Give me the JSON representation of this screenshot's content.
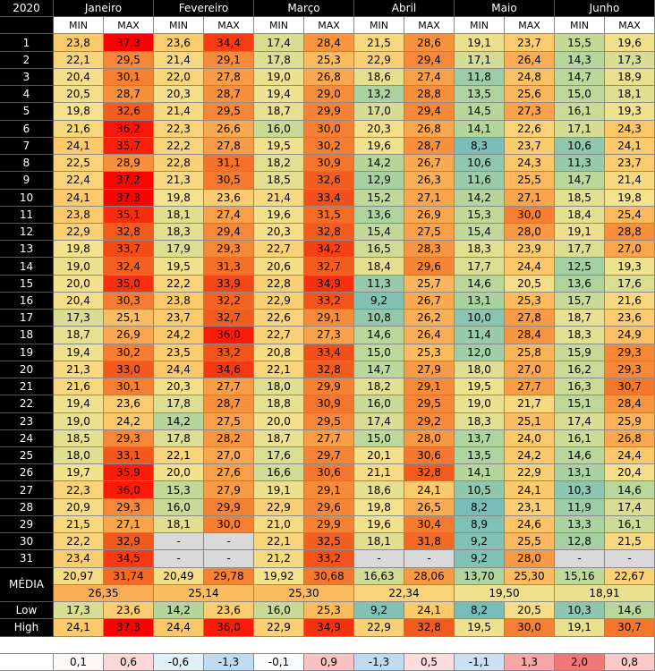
{
  "header": {
    "year": "2020",
    "months": [
      "Janeiro",
      "Fevereiro",
      "Março",
      "Abril",
      "Maio",
      "Junho"
    ],
    "subheaders": [
      "MIN",
      "MAX"
    ]
  },
  "rows": [
    {
      "day": "1",
      "cells": [
        "23,8",
        "37,3",
        "23,6",
        "34,4",
        "17,4",
        "28,4",
        "21,5",
        "28,6",
        "19,1",
        "23,7",
        "15,5",
        "19,6"
      ]
    },
    {
      "day": "2",
      "cells": [
        "22,1",
        "29,5",
        "21,4",
        "29,1",
        "17,8",
        "25,3",
        "22,9",
        "29,4",
        "17,1",
        "26,4",
        "14,3",
        "17,3"
      ]
    },
    {
      "day": "3",
      "cells": [
        "20,4",
        "30,1",
        "22,0",
        "27,8",
        "19,0",
        "26,8",
        "18,6",
        "27,4",
        "11,8",
        "24,8",
        "14,7",
        "18,9"
      ]
    },
    {
      "day": "4",
      "cells": [
        "20,5",
        "28,7",
        "20,3",
        "28,7",
        "19,4",
        "29,0",
        "13,2",
        "28,8",
        "13,5",
        "25,6",
        "15,0",
        "18,1"
      ]
    },
    {
      "day": "5",
      "cells": [
        "19,8",
        "32,6",
        "21,4",
        "29,5",
        "18,7",
        "29,9",
        "17,0",
        "29,4",
        "14,5",
        "27,3",
        "16,1",
        "19,3"
      ]
    },
    {
      "day": "6",
      "cells": [
        "21,6",
        "36,2",
        "22,3",
        "26,6",
        "16,0",
        "30,0",
        "20,3",
        "26,8",
        "14,1",
        "22,6",
        "17,1",
        "24,3"
      ]
    },
    {
      "day": "7",
      "cells": [
        "24,1",
        "35,7",
        "22,2",
        "27,8",
        "19,5",
        "30,2",
        "19,6",
        "28,7",
        "8,3",
        "23,7",
        "10,6",
        "24,1"
      ]
    },
    {
      "day": "8",
      "cells": [
        "22,5",
        "28,9",
        "22,8",
        "31,1",
        "18,2",
        "30,9",
        "14,2",
        "26,7",
        "10,6",
        "24,3",
        "11,3",
        "23,7"
      ]
    },
    {
      "day": "9",
      "cells": [
        "22,4",
        "37,2",
        "21,3",
        "30,5",
        "18,5",
        "32,6",
        "12,9",
        "26,3",
        "11,6",
        "25,5",
        "14,7",
        "21,4"
      ]
    },
    {
      "day": "10",
      "cells": [
        "24,1",
        "37,3",
        "19,8",
        "23,6",
        "21,4",
        "33,4",
        "15,2",
        "27,1",
        "14,2",
        "27,1",
        "18,5",
        "19,8"
      ]
    },
    {
      "day": "11",
      "cells": [
        "23,8",
        "35,1",
        "18,1",
        "27,4",
        "19,6",
        "31,5",
        "13,6",
        "26,9",
        "15,3",
        "30,0",
        "18,4",
        "25,4"
      ]
    },
    {
      "day": "12",
      "cells": [
        "22,9",
        "32,8",
        "18,3",
        "29,4",
        "20,3",
        "32,8",
        "15,4",
        "27,5",
        "15,4",
        "28,0",
        "19,1",
        "28,8"
      ]
    },
    {
      "day": "13",
      "cells": [
        "19,8",
        "33,7",
        "17,9",
        "29,3",
        "22,7",
        "34,2",
        "16,5",
        "28,3",
        "18,3",
        "23,9",
        "17,7",
        "27,0"
      ]
    },
    {
      "day": "14",
      "cells": [
        "19,0",
        "32,4",
        "19,5",
        "31,3",
        "20,6",
        "32,7",
        "18,4",
        "29,6",
        "17,7",
        "24,4",
        "12,5",
        "19,3"
      ]
    },
    {
      "day": "15",
      "cells": [
        "20,0",
        "35,0",
        "22,2",
        "33,9",
        "22,8",
        "34,9",
        "11,3",
        "25,7",
        "14,6",
        "20,5",
        "13,6",
        "17,6"
      ]
    },
    {
      "day": "16",
      "cells": [
        "20,4",
        "30,3",
        "23,8",
        "32,2",
        "22,9",
        "33,2",
        "9,2",
        "26,7",
        "13,1",
        "25,3",
        "15,7",
        "21,6"
      ]
    },
    {
      "day": "17",
      "cells": [
        "17,3",
        "25,1",
        "23,7",
        "32,7",
        "22,6",
        "29,1",
        "10,8",
        "26,2",
        "10,0",
        "27,8",
        "18,7",
        "23,6"
      ]
    },
    {
      "day": "18",
      "cells": [
        "18,7",
        "26,9",
        "24,2",
        "36,0",
        "22,7",
        "27,3",
        "14,6",
        "26,4",
        "11,4",
        "28,4",
        "18,3",
        "24,9"
      ]
    },
    {
      "day": "19",
      "cells": [
        "19,4",
        "30,2",
        "23,5",
        "33,2",
        "20,8",
        "33,4",
        "15,0",
        "25,3",
        "12,0",
        "25,8",
        "15,9",
        "29,3"
      ]
    },
    {
      "day": "20",
      "cells": [
        "21,3",
        "33,0",
        "24,4",
        "34,6",
        "22,1",
        "32,8",
        "14,7",
        "27,9",
        "18,0",
        "27,0",
        "16,2",
        "29,3"
      ]
    },
    {
      "day": "21",
      "cells": [
        "21,6",
        "30,1",
        "20,3",
        "27,7",
        "18,0",
        "29,9",
        "18,2",
        "29,1",
        "19,5",
        "27,7",
        "16,3",
        "30,7"
      ]
    },
    {
      "day": "22",
      "cells": [
        "19,4",
        "23,6",
        "17,8",
        "28,7",
        "18,8",
        "30,9",
        "16,0",
        "29,5",
        "19,0",
        "21,7",
        "15,1",
        "28,4"
      ]
    },
    {
      "day": "23",
      "cells": [
        "19,0",
        "24,2",
        "14,2",
        "27,5",
        "20,0",
        "29,5",
        "17,4",
        "29,2",
        "18,3",
        "25,1",
        "17,4",
        "25,9"
      ]
    },
    {
      "day": "24",
      "cells": [
        "18,5",
        "29,3",
        "17,8",
        "28,2",
        "18,7",
        "27,7",
        "15,0",
        "28,0",
        "13,7",
        "24,0",
        "16,1",
        "26,8"
      ]
    },
    {
      "day": "25",
      "cells": [
        "18,0",
        "33,1",
        "22,1",
        "27,0",
        "17,6",
        "29,7",
        "20,1",
        "30,6",
        "13,5",
        "24,2",
        "14,6",
        "24,4"
      ]
    },
    {
      "day": "26",
      "cells": [
        "19,7",
        "35,9",
        "20,0",
        "27,6",
        "16,6",
        "30,6",
        "21,1",
        "32,8",
        "14,1",
        "22,9",
        "13,1",
        "20,4"
      ]
    },
    {
      "day": "27",
      "cells": [
        "22,3",
        "36,0",
        "15,3",
        "27,9",
        "19,1",
        "29,1",
        "18,6",
        "24,1",
        "10,5",
        "24,1",
        "10,3",
        "14,6"
      ]
    },
    {
      "day": "28",
      "cells": [
        "20,9",
        "29,3",
        "16,0",
        "29,9",
        "22,9",
        "29,6",
        "19,8",
        "26,5",
        "8,2",
        "23,1",
        "11,9",
        "17,4"
      ]
    },
    {
      "day": "29",
      "cells": [
        "21,5",
        "27,1",
        "18,1",
        "30,0",
        "21,0",
        "29,9",
        "19,6",
        "30,4",
        "8,9",
        "24,6",
        "13,3",
        "16,1"
      ]
    },
    {
      "day": "30",
      "cells": [
        "22,2",
        "32,9",
        "-",
        "-",
        "22,1",
        "32,5",
        "18,1",
        "31,8",
        "9,2",
        "25,5",
        "12,8",
        "21,5"
      ]
    },
    {
      "day": "31",
      "cells": [
        "23,4",
        "34,5",
        "-",
        "-",
        "21,2",
        "33,2",
        "-",
        "-",
        "9,2",
        "28,0",
        "-",
        "-"
      ]
    }
  ],
  "media": {
    "label": "MÉDIA",
    "values": [
      "20,97",
      "31,74",
      "20,49",
      "29,78",
      "19,92",
      "30,68",
      "16,63",
      "28,06",
      "13,70",
      "25,30",
      "15,16",
      "22,67"
    ],
    "averages": [
      "26,35",
      "25,14",
      "25,30",
      "22,34",
      "19,50",
      "18,91"
    ]
  },
  "low": {
    "label": "Low",
    "values": [
      "17,3",
      "23,6",
      "14,2",
      "23,6",
      "16,0",
      "25,3",
      "9,2",
      "24,1",
      "8,2",
      "20,5",
      "10,3",
      "14,6"
    ]
  },
  "high": {
    "label": "High",
    "values": [
      "24,1",
      "37,3",
      "24,4",
      "36,0",
      "22,9",
      "34,9",
      "22,9",
      "32,8",
      "19,5",
      "30,0",
      "19,1",
      "30,7"
    ]
  },
  "delta": [
    "0,1",
    "0,6",
    "-0,6",
    "-1,3",
    "-0,1",
    "0,9",
    "-1,3",
    "0,5",
    "-1,1",
    "1,3",
    "2,0",
    "0,8"
  ]
}
